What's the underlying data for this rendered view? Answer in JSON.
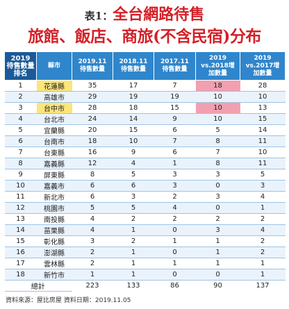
{
  "header": {
    "label": "表1：",
    "title1": "全台網路待售",
    "title2": "旅館、飯店、商旅(不含民宿)分布"
  },
  "table": {
    "columns": [
      [
        "2019",
        "待售數量",
        "排名"
      ],
      [
        "縣市"
      ],
      [
        "2019.11",
        "待售數量"
      ],
      [
        "2018.11",
        "待售數量"
      ],
      [
        "2017.11",
        "待售數量"
      ],
      [
        "2019",
        "vs.2018增",
        "加數量"
      ],
      [
        "2019",
        "vs.2017增",
        "加數量"
      ]
    ],
    "rows": [
      [
        1,
        "花蓮縣",
        35,
        17,
        7,
        18,
        28
      ],
      [
        2,
        "高雄市",
        29,
        19,
        19,
        10,
        10
      ],
      [
        3,
        "台中市",
        28,
        18,
        15,
        10,
        13
      ],
      [
        4,
        "台北市",
        24,
        14,
        9,
        10,
        15
      ],
      [
        5,
        "宜蘭縣",
        20,
        15,
        6,
        5,
        14
      ],
      [
        6,
        "台南市",
        18,
        10,
        7,
        8,
        11
      ],
      [
        7,
        "台東縣",
        16,
        9,
        6,
        7,
        10
      ],
      [
        8,
        "嘉義縣",
        12,
        4,
        1,
        8,
        11
      ],
      [
        9,
        "屏東縣",
        8,
        5,
        3,
        3,
        5
      ],
      [
        10,
        "嘉義市",
        6,
        6,
        3,
        0,
        3
      ],
      [
        11,
        "新北市",
        6,
        3,
        2,
        3,
        4
      ],
      [
        12,
        "桃園市",
        5,
        5,
        4,
        0,
        1
      ],
      [
        13,
        "南投縣",
        4,
        2,
        2,
        2,
        2
      ],
      [
        14,
        "苗栗縣",
        4,
        1,
        0,
        3,
        4
      ],
      [
        15,
        "彰化縣",
        3,
        2,
        1,
        1,
        2
      ],
      [
        16,
        "澎湖縣",
        2,
        1,
        0,
        1,
        2
      ],
      [
        17,
        "雲林縣",
        2,
        1,
        1,
        1,
        1
      ],
      [
        18,
        "新竹市",
        1,
        1,
        0,
        0,
        1
      ]
    ],
    "total": {
      "label": "總計",
      "values": [
        223,
        133,
        86,
        90,
        137
      ]
    }
  },
  "source": "資料來源：屋比房屋  資料日期：2019.11.05"
}
